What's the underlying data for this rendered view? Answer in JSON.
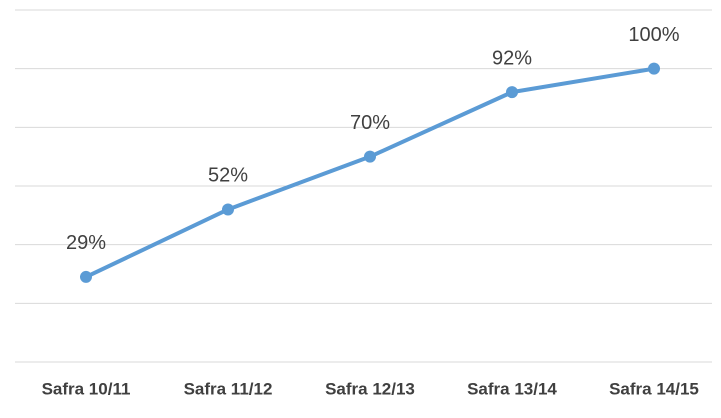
{
  "chart_data": {
    "type": "line",
    "categories": [
      "Safra 10/11",
      "Safra 11/12",
      "Safra 12/13",
      "Safra 13/14",
      "Safra 14/15"
    ],
    "values": [
      29,
      52,
      70,
      92,
      100
    ],
    "value_labels": [
      "29%",
      "52%",
      "70%",
      "92%",
      "100%"
    ],
    "color": "#5b9bd5",
    "ylim": [
      0,
      120
    ],
    "yticks": [
      0,
      20,
      40,
      60,
      80,
      100,
      120
    ],
    "grid": true
  }
}
